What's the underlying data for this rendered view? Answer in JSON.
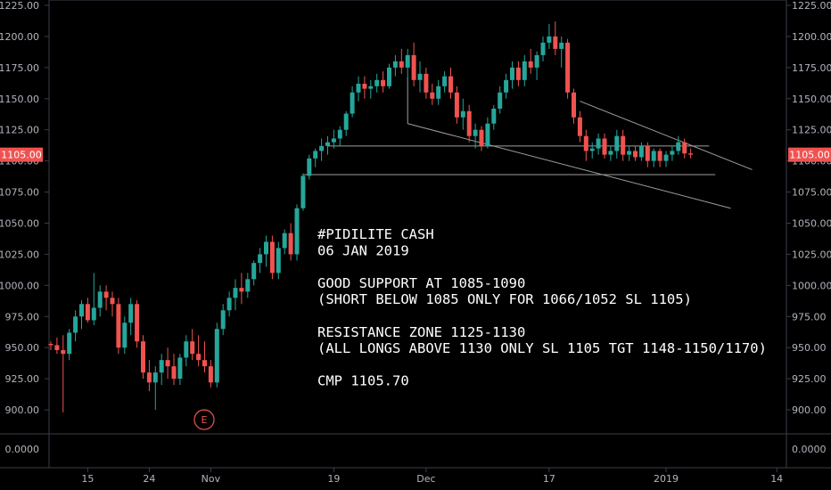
{
  "chart_data": {
    "type": "candlestick",
    "symbol_text": "#PIDILITE CASH",
    "ylim": [
      885,
      1225
    ],
    "indicator_ylim": [
      -1,
      1
    ],
    "y_ticks": [
      "1225.00",
      "1200.00",
      "1175.00",
      "1150.00",
      "1125.00",
      "1100.00",
      "1075.00",
      "1050.00",
      "1025.00",
      "1000.00",
      "975.00",
      "950.00",
      "925.00",
      "900.00"
    ],
    "y_tick_values": [
      1225,
      1200,
      1175,
      1150,
      1125,
      1100,
      1075,
      1050,
      1025,
      1000,
      975,
      950,
      925,
      900
    ],
    "indicator_tick": "0.0000",
    "indicator_tick_value": 0,
    "x_ticks": [
      "15",
      "24",
      "Nov",
      "19",
      "Dec",
      "17",
      "2019",
      "14"
    ],
    "x_tick_index": [
      6,
      16,
      26,
      46,
      61,
      81,
      100,
      118
    ],
    "last_price": "1105.00",
    "last_price_value": 1105,
    "up_color": "#26a69a",
    "down_color": "#ef5350",
    "annotation_lines": [
      "#PIDILITE CASH",
      "06 JAN 2019",
      "",
      "GOOD SUPPORT AT 1085-1090",
      "(SHORT BELOW 1085 ONLY FOR 1066/1052 SL 1105)",
      "",
      "RESISTANCE ZONE 1125-1130",
      "(ALL LONGS ABOVE 1130 ONLY SL 1105 TGT 1148-1150/1170)",
      "",
      "CMP 1105.70"
    ],
    "earnings_marker": "E",
    "earnings_marker_index": 23,
    "candles": [
      [
        953,
        955,
        948,
        952
      ],
      [
        952,
        958,
        945,
        948
      ],
      [
        948,
        960,
        898,
        945
      ],
      [
        945,
        965,
        940,
        962
      ],
      [
        962,
        980,
        955,
        975
      ],
      [
        975,
        988,
        965,
        985
      ],
      [
        985,
        990,
        970,
        972
      ],
      [
        972,
        1010,
        968,
        982
      ],
      [
        982,
        1000,
        975,
        995
      ],
      [
        995,
        1000,
        980,
        990
      ],
      [
        990,
        995,
        975,
        985
      ],
      [
        985,
        990,
        945,
        950
      ],
      [
        950,
        975,
        945,
        970
      ],
      [
        970,
        990,
        960,
        985
      ],
      [
        985,
        988,
        950,
        955
      ],
      [
        955,
        960,
        925,
        930
      ],
      [
        930,
        940,
        915,
        922
      ],
      [
        922,
        935,
        900,
        930
      ],
      [
        930,
        945,
        920,
        940
      ],
      [
        940,
        950,
        925,
        935
      ],
      [
        935,
        945,
        920,
        925
      ],
      [
        925,
        945,
        920,
        942
      ],
      [
        942,
        960,
        935,
        955
      ],
      [
        955,
        965,
        940,
        945
      ],
      [
        945,
        960,
        935,
        940
      ],
      [
        940,
        955,
        930,
        935
      ],
      [
        935,
        940,
        918,
        922
      ],
      [
        922,
        970,
        918,
        965
      ],
      [
        965,
        985,
        960,
        980
      ],
      [
        980,
        995,
        975,
        990
      ],
      [
        990,
        1005,
        980,
        998
      ],
      [
        998,
        1010,
        985,
        995
      ],
      [
        995,
        1010,
        990,
        1005
      ],
      [
        1005,
        1020,
        1000,
        1018
      ],
      [
        1018,
        1030,
        1010,
        1025
      ],
      [
        1025,
        1040,
        1015,
        1035
      ],
      [
        1035,
        1040,
        1005,
        1010
      ],
      [
        1010,
        1035,
        1005,
        1030
      ],
      [
        1030,
        1045,
        1025,
        1042
      ],
      [
        1042,
        1050,
        1020,
        1025
      ],
      [
        1025,
        1065,
        1020,
        1062
      ],
      [
        1062,
        1090,
        1060,
        1088
      ],
      [
        1088,
        1105,
        1085,
        1102
      ],
      [
        1102,
        1110,
        1095,
        1108
      ],
      [
        1108,
        1118,
        1100,
        1112
      ],
      [
        1112,
        1120,
        1105,
        1115
      ],
      [
        1115,
        1125,
        1110,
        1118
      ],
      [
        1118,
        1128,
        1112,
        1125
      ],
      [
        1125,
        1140,
        1120,
        1138
      ],
      [
        1138,
        1160,
        1135,
        1155
      ],
      [
        1155,
        1168,
        1148,
        1162
      ],
      [
        1162,
        1168,
        1150,
        1158
      ],
      [
        1158,
        1165,
        1150,
        1160
      ],
      [
        1160,
        1170,
        1155,
        1165
      ],
      [
        1165,
        1172,
        1155,
        1160
      ],
      [
        1160,
        1178,
        1158,
        1175
      ],
      [
        1175,
        1185,
        1168,
        1180
      ],
      [
        1180,
        1190,
        1170,
        1175
      ],
      [
        1175,
        1190,
        1165,
        1185
      ],
      [
        1185,
        1195,
        1160,
        1165
      ],
      [
        1165,
        1180,
        1155,
        1170
      ],
      [
        1170,
        1175,
        1150,
        1155
      ],
      [
        1155,
        1162,
        1145,
        1150
      ],
      [
        1150,
        1165,
        1145,
        1160
      ],
      [
        1160,
        1172,
        1155,
        1168
      ],
      [
        1168,
        1175,
        1150,
        1155
      ],
      [
        1155,
        1160,
        1130,
        1135
      ],
      [
        1135,
        1150,
        1125,
        1140
      ],
      [
        1140,
        1145,
        1115,
        1120
      ],
      [
        1120,
        1130,
        1110,
        1125
      ],
      [
        1125,
        1128,
        1108,
        1112
      ],
      [
        1112,
        1135,
        1110,
        1130
      ],
      [
        1130,
        1145,
        1125,
        1142
      ],
      [
        1142,
        1160,
        1138,
        1155
      ],
      [
        1155,
        1170,
        1150,
        1165
      ],
      [
        1165,
        1180,
        1158,
        1175
      ],
      [
        1175,
        1180,
        1160,
        1165
      ],
      [
        1165,
        1185,
        1160,
        1180
      ],
      [
        1180,
        1190,
        1170,
        1175
      ],
      [
        1175,
        1188,
        1165,
        1185
      ],
      [
        1185,
        1200,
        1180,
        1195
      ],
      [
        1195,
        1210,
        1190,
        1200
      ],
      [
        1200,
        1212,
        1185,
        1190
      ],
      [
        1190,
        1200,
        1175,
        1195
      ],
      [
        1195,
        1198,
        1150,
        1155
      ],
      [
        1155,
        1158,
        1130,
        1135
      ],
      [
        1135,
        1140,
        1115,
        1120
      ],
      [
        1120,
        1125,
        1100,
        1108
      ],
      [
        1108,
        1115,
        1102,
        1110
      ],
      [
        1110,
        1122,
        1105,
        1118
      ],
      [
        1118,
        1122,
        1102,
        1105
      ],
      [
        1105,
        1112,
        1100,
        1108
      ],
      [
        1108,
        1125,
        1102,
        1120
      ],
      [
        1120,
        1125,
        1100,
        1105
      ],
      [
        1105,
        1112,
        1100,
        1108
      ],
      [
        1108,
        1112,
        1100,
        1103
      ],
      [
        1103,
        1115,
        1100,
        1112
      ],
      [
        1112,
        1115,
        1095,
        1100
      ],
      [
        1100,
        1110,
        1095,
        1108
      ],
      [
        1108,
        1110,
        1095,
        1100
      ],
      [
        1100,
        1108,
        1095,
        1105
      ],
      [
        1105,
        1112,
        1100,
        1108
      ],
      [
        1108,
        1120,
        1105,
        1115
      ],
      [
        1115,
        1118,
        1102,
        1106
      ],
      [
        1106,
        1110,
        1102,
        1105
      ]
    ]
  }
}
